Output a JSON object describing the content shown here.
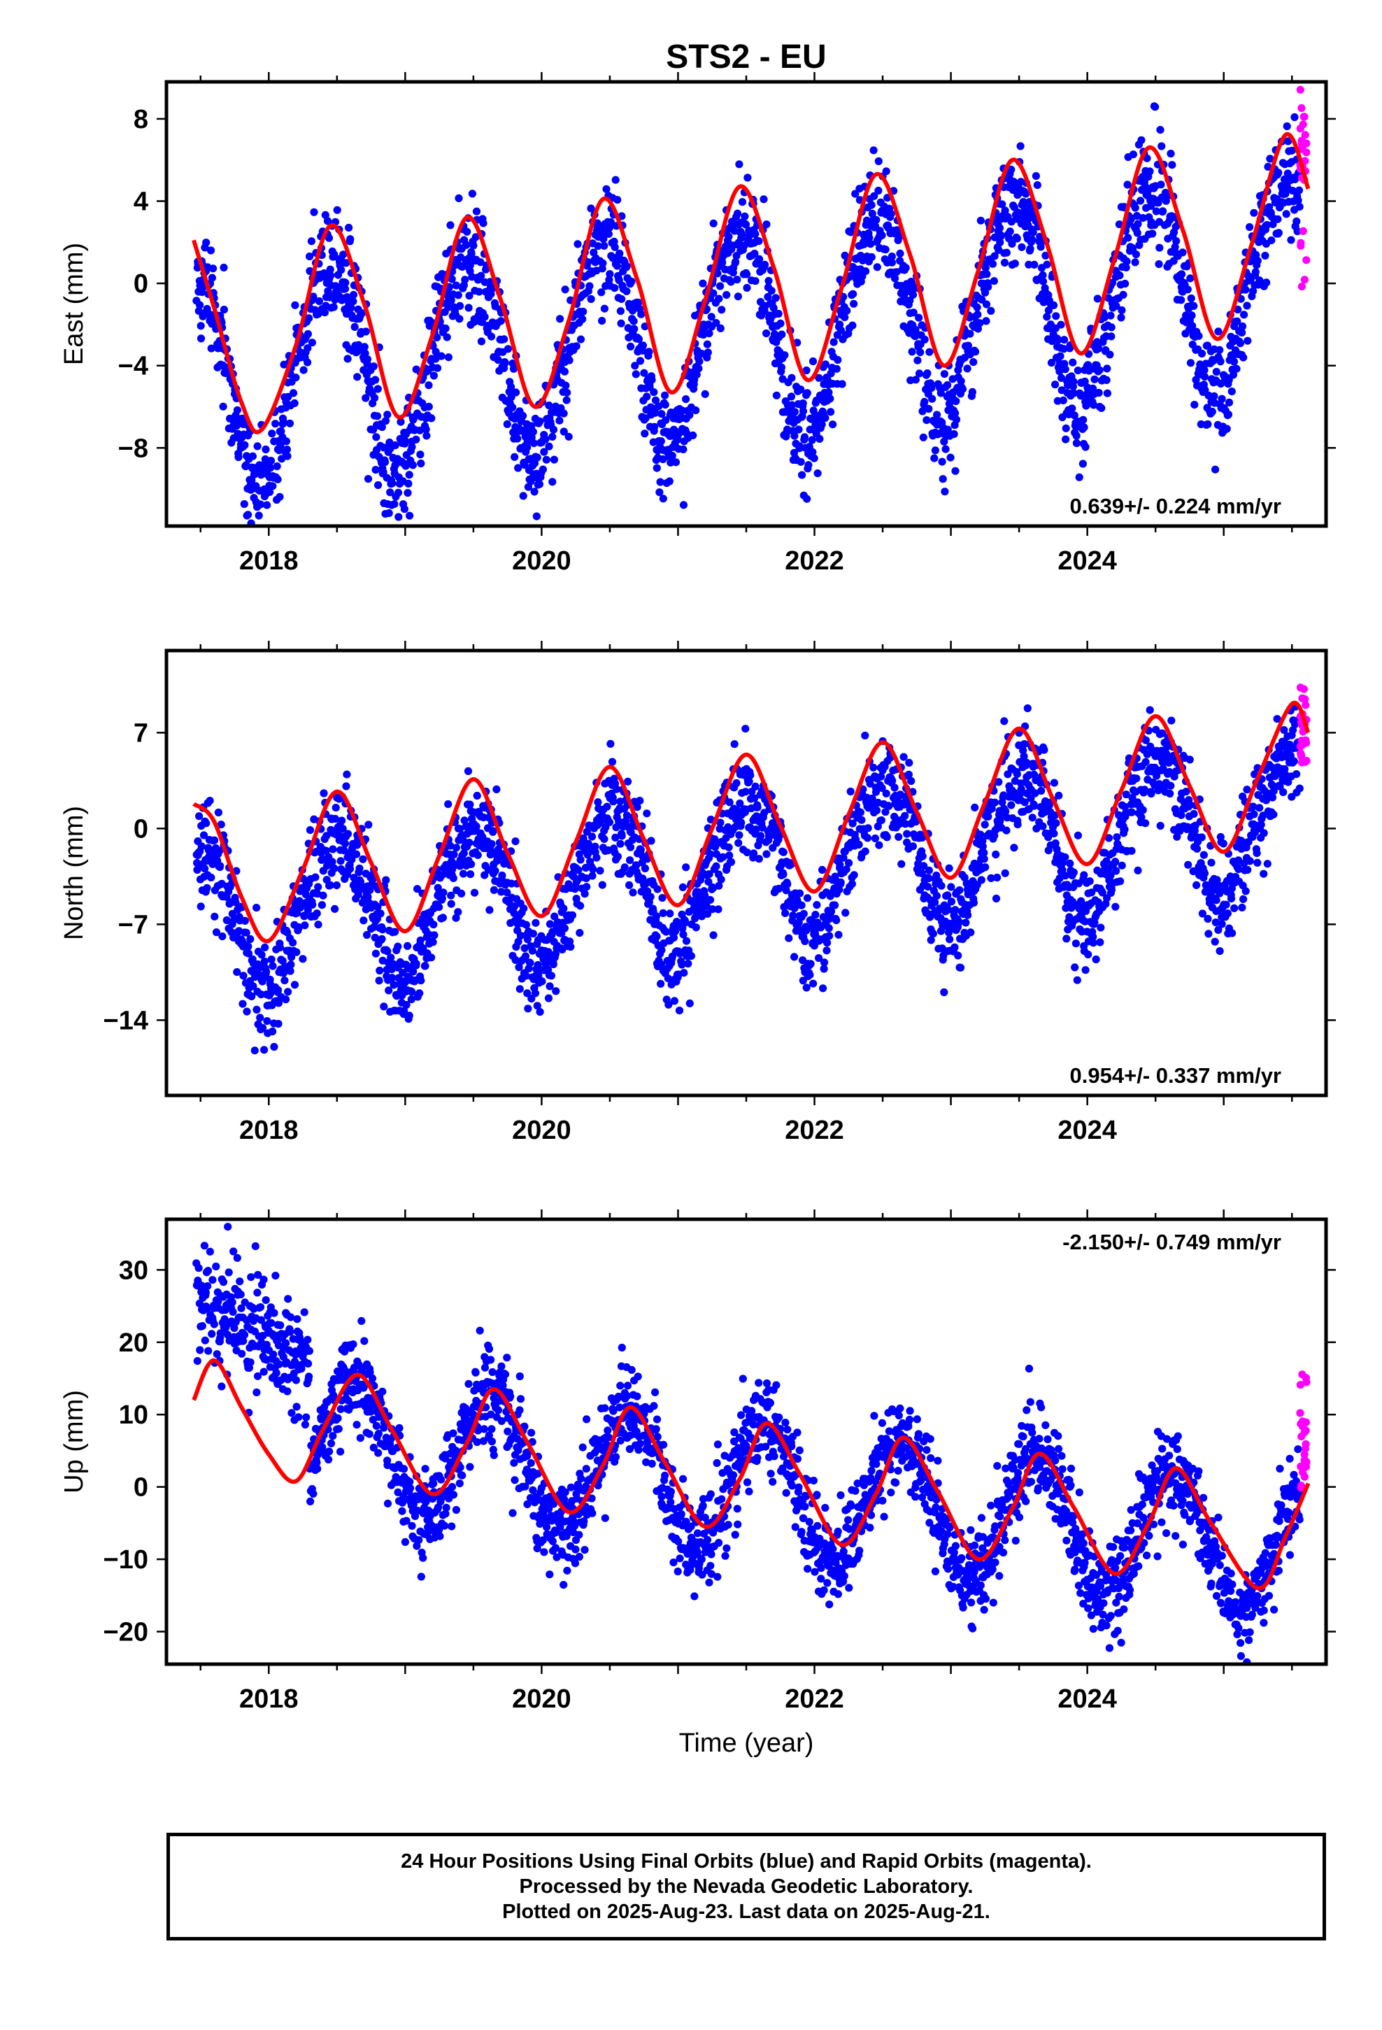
{
  "title": "STS2 - EU",
  "xlabel": "Time (year)",
  "colors": {
    "final": "#0000ff",
    "rapid": "#ff00ff",
    "fit": "#ff0000"
  },
  "footer": {
    "line1": "24 Hour Positions Using Final Orbits (blue) and Rapid Orbits (magenta).",
    "line2": "Processed by the Nevada Geodetic Laboratory.",
    "line3": "Plotted on 2025-Aug-23. Last data on 2025-Aug-21."
  },
  "chart_data": [
    {
      "type": "scatter",
      "component": "East",
      "ylabel": "East (mm)",
      "xlim": [
        2017.25,
        2025.75
      ],
      "ylim": [
        -11.8,
        9.8
      ],
      "xticks": [
        2018,
        2020,
        2022,
        2024
      ],
      "yticks": [
        -8,
        -4,
        0,
        4,
        8
      ],
      "rate_label": "0.639+/- 0.224 mm/yr",
      "rate_position": "bottom-right",
      "model": {
        "offset": -2.2,
        "trend": 0.639,
        "amp_annual": 5.0,
        "phase_annual": 0.45,
        "amp_semi": 0.4,
        "phase_semi": 0.15,
        "noise": 1.4
      },
      "fit_curve": [
        [
          2017.45,
          2.1
        ],
        [
          2017.6,
          -1.2
        ],
        [
          2017.8,
          -5.8
        ],
        [
          2017.95,
          -7.1
        ],
        [
          2018.2,
          -3.0
        ],
        [
          2018.45,
          2.8
        ],
        [
          2018.7,
          -1.0
        ],
        [
          2018.95,
          -6.5
        ],
        [
          2019.2,
          -2.5
        ],
        [
          2019.45,
          3.2
        ],
        [
          2019.7,
          -0.8
        ],
        [
          2019.95,
          -6.0
        ],
        [
          2020.2,
          -1.8
        ],
        [
          2020.45,
          4.1
        ],
        [
          2020.7,
          0.2
        ],
        [
          2020.95,
          -5.3
        ],
        [
          2021.2,
          -0.8
        ],
        [
          2021.45,
          4.7
        ],
        [
          2021.7,
          0.8
        ],
        [
          2021.95,
          -4.7
        ],
        [
          2022.2,
          -0.2
        ],
        [
          2022.45,
          5.3
        ],
        [
          2022.7,
          1.4
        ],
        [
          2022.95,
          -4.0
        ],
        [
          2023.2,
          0.6
        ],
        [
          2023.45,
          6.0
        ],
        [
          2023.7,
          2.0
        ],
        [
          2023.95,
          -3.4
        ],
        [
          2024.2,
          1.2
        ],
        [
          2024.45,
          6.6
        ],
        [
          2024.7,
          2.6
        ],
        [
          2024.95,
          -2.7
        ],
        [
          2025.2,
          1.8
        ],
        [
          2025.45,
          7.2
        ],
        [
          2025.62,
          4.6
        ]
      ],
      "rapid_range": [
        -0.3,
        9.5
      ]
    },
    {
      "type": "scatter",
      "component": "North",
      "ylabel": "North (mm)",
      "xlim": [
        2017.25,
        2025.75
      ],
      "ylim": [
        -19.5,
        13
      ],
      "xticks": [
        2018,
        2020,
        2022,
        2024
      ],
      "yticks": [
        -14,
        -7,
        0,
        7
      ],
      "rate_label": "0.954+/- 0.337 mm/yr",
      "rate_position": "bottom-right",
      "model": {
        "offset": -3.0,
        "trend": 0.954,
        "amp_annual": 5.2,
        "phase_annual": 0.5,
        "amp_semi": 0.6,
        "phase_semi": 0.2,
        "noise": 1.9
      },
      "fit_curve": [
        [
          2017.45,
          1.8
        ],
        [
          2017.6,
          0.5
        ],
        [
          2017.8,
          -5.0
        ],
        [
          2018.0,
          -8.2
        ],
        [
          2018.25,
          -3.0
        ],
        [
          2018.5,
          2.7
        ],
        [
          2018.75,
          -2.5
        ],
        [
          2019.0,
          -7.5
        ],
        [
          2019.25,
          -2.0
        ],
        [
          2019.5,
          3.6
        ],
        [
          2019.75,
          -1.8
        ],
        [
          2020.0,
          -6.4
        ],
        [
          2020.25,
          -1.0
        ],
        [
          2020.5,
          4.5
        ],
        [
          2020.75,
          -0.8
        ],
        [
          2021.0,
          -5.6
        ],
        [
          2021.25,
          0.0
        ],
        [
          2021.5,
          5.4
        ],
        [
          2021.75,
          0.2
        ],
        [
          2022.0,
          -4.6
        ],
        [
          2022.25,
          1.0
        ],
        [
          2022.5,
          6.3
        ],
        [
          2022.75,
          1.2
        ],
        [
          2023.0,
          -3.6
        ],
        [
          2023.25,
          1.9
        ],
        [
          2023.5,
          7.3
        ],
        [
          2023.75,
          2.1
        ],
        [
          2024.0,
          -2.6
        ],
        [
          2024.25,
          2.8
        ],
        [
          2024.5,
          8.2
        ],
        [
          2024.75,
          3.1
        ],
        [
          2025.0,
          -1.7
        ],
        [
          2025.25,
          3.7
        ],
        [
          2025.5,
          9.1
        ],
        [
          2025.62,
          7.0
        ]
      ],
      "rapid_range": [
        4.5,
        10.5
      ]
    },
    {
      "type": "scatter",
      "component": "Up",
      "ylabel": "Up (mm)",
      "xlim": [
        2017.25,
        2025.75
      ],
      "ylim": [
        -24.5,
        37
      ],
      "xticks": [
        2018,
        2020,
        2022,
        2024
      ],
      "yticks": [
        -20,
        -10,
        0,
        10,
        20,
        30
      ],
      "rate_label": "-2.150+/- 0.749 mm/yr",
      "rate_position": "top-right",
      "model": {
        "offset": 0.0,
        "trend": -2.15,
        "amp_annual": 9.0,
        "phase_annual": 0.63,
        "amp_semi": 0.0,
        "phase_semi": 0.0,
        "noise": 3.2,
        "early_offset": 13.0,
        "early_end": 2018.3
      },
      "fit_curve": [
        [
          2017.45,
          12.0
        ],
        [
          2017.6,
          17.5
        ],
        [
          2017.8,
          11.0
        ],
        [
          2018.0,
          4.5
        ],
        [
          2018.2,
          0.8
        ],
        [
          2018.4,
          8.0
        ],
        [
          2018.65,
          15.5
        ],
        [
          2018.9,
          8.0
        ],
        [
          2019.2,
          -1.0
        ],
        [
          2019.45,
          6.0
        ],
        [
          2019.65,
          13.5
        ],
        [
          2019.9,
          6.0
        ],
        [
          2020.2,
          -3.5
        ],
        [
          2020.45,
          3.0
        ],
        [
          2020.65,
          11.0
        ],
        [
          2020.9,
          3.5
        ],
        [
          2021.2,
          -5.5
        ],
        [
          2021.45,
          1.0
        ],
        [
          2021.65,
          8.8
        ],
        [
          2021.9,
          1.5
        ],
        [
          2022.2,
          -8.0
        ],
        [
          2022.45,
          -1.0
        ],
        [
          2022.65,
          6.8
        ],
        [
          2022.9,
          -0.5
        ],
        [
          2023.2,
          -10.0
        ],
        [
          2023.45,
          -3.0
        ],
        [
          2023.65,
          4.6
        ],
        [
          2023.9,
          -2.8
        ],
        [
          2024.2,
          -12.0
        ],
        [
          2024.45,
          -5.0
        ],
        [
          2024.65,
          2.6
        ],
        [
          2024.9,
          -4.8
        ],
        [
          2025.25,
          -14.0
        ],
        [
          2025.45,
          -7.0
        ],
        [
          2025.62,
          0.5
        ]
      ],
      "rapid_range": [
        -1.5,
        17.0
      ]
    }
  ]
}
